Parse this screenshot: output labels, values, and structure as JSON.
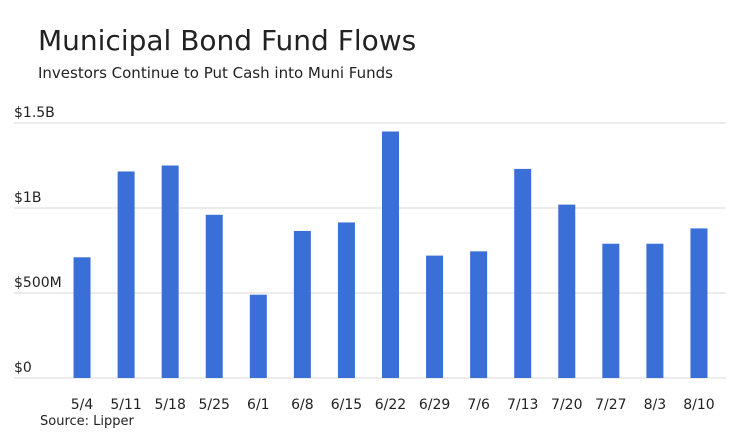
{
  "chart_data": {
    "type": "bar",
    "title": "Municipal Bond Fund Flows",
    "subtitle": "Investors Continue to Put Cash into Muni Funds",
    "source": "Source: Lipper",
    "categories": [
      "5/4",
      "5/11",
      "5/18",
      "5/25",
      "6/1",
      "6/8",
      "6/15",
      "6/22",
      "6/29",
      "7/6",
      "7/13",
      "7/20",
      "7/27",
      "8/3",
      "8/10"
    ],
    "values": [
      710,
      1215,
      1250,
      960,
      490,
      865,
      915,
      1450,
      720,
      745,
      1230,
      1020,
      790,
      790,
      880
    ],
    "color": "#3a6fd8",
    "ylim": [
      0,
      1500
    ],
    "yticks": [
      {
        "value": 0,
        "label": "$0"
      },
      {
        "value": 500,
        "label": "$500M"
      },
      {
        "value": 1000,
        "label": "$1B"
      },
      {
        "value": 1500,
        "label": "$1.5B"
      }
    ],
    "grid": true
  }
}
